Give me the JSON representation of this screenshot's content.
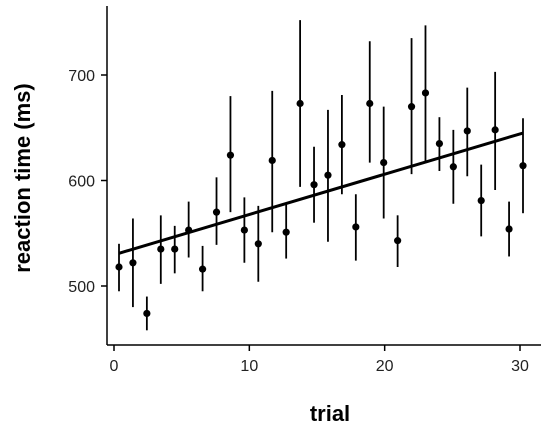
{
  "chart_data": {
    "type": "scatter",
    "title": "",
    "xlabel": "trial",
    "ylabel": "reaction time (ms)",
    "xlim": [
      0,
      31
    ],
    "ylim": [
      455,
      760
    ],
    "x_ticks": [
      0,
      10,
      20,
      30
    ],
    "y_ticks": [
      500,
      600,
      700
    ],
    "grid": false,
    "legend": "none",
    "colors": {
      "points": "#000000",
      "axes": "#000000",
      "text": "#222222"
    },
    "series": [
      {
        "x": [
          1,
          2,
          3,
          4,
          5,
          6,
          7,
          8,
          9,
          10,
          11,
          12,
          13,
          14,
          15,
          16,
          17,
          18,
          19,
          20,
          21,
          22,
          23,
          24,
          25,
          26,
          27,
          28,
          29,
          30
        ],
        "y": [
          518,
          522,
          474,
          535,
          535,
          553,
          516,
          570,
          624,
          553,
          540,
          619,
          551,
          673,
          596,
          605,
          634,
          556,
          673,
          617,
          543,
          670,
          683,
          635,
          613,
          647,
          581,
          648,
          554,
          614
        ],
        "yerr_low": [
          495,
          480,
          458,
          502,
          512,
          527,
          495,
          539,
          570,
          522,
          504,
          551,
          526,
          594,
          560,
          542,
          587,
          524,
          617,
          564,
          518,
          606,
          618,
          609,
          578,
          604,
          547,
          591,
          528,
          569
        ],
        "yerr_high": [
          540,
          564,
          490,
          567,
          557,
          580,
          538,
          603,
          680,
          584,
          576,
          685,
          578,
          752,
          632,
          667,
          681,
          587,
          732,
          670,
          567,
          735,
          747,
          660,
          648,
          688,
          615,
          703,
          580,
          659
        ]
      }
    ],
    "fit_line": {
      "x": [
        1,
        30
      ],
      "y": [
        531,
        645
      ]
    }
  }
}
